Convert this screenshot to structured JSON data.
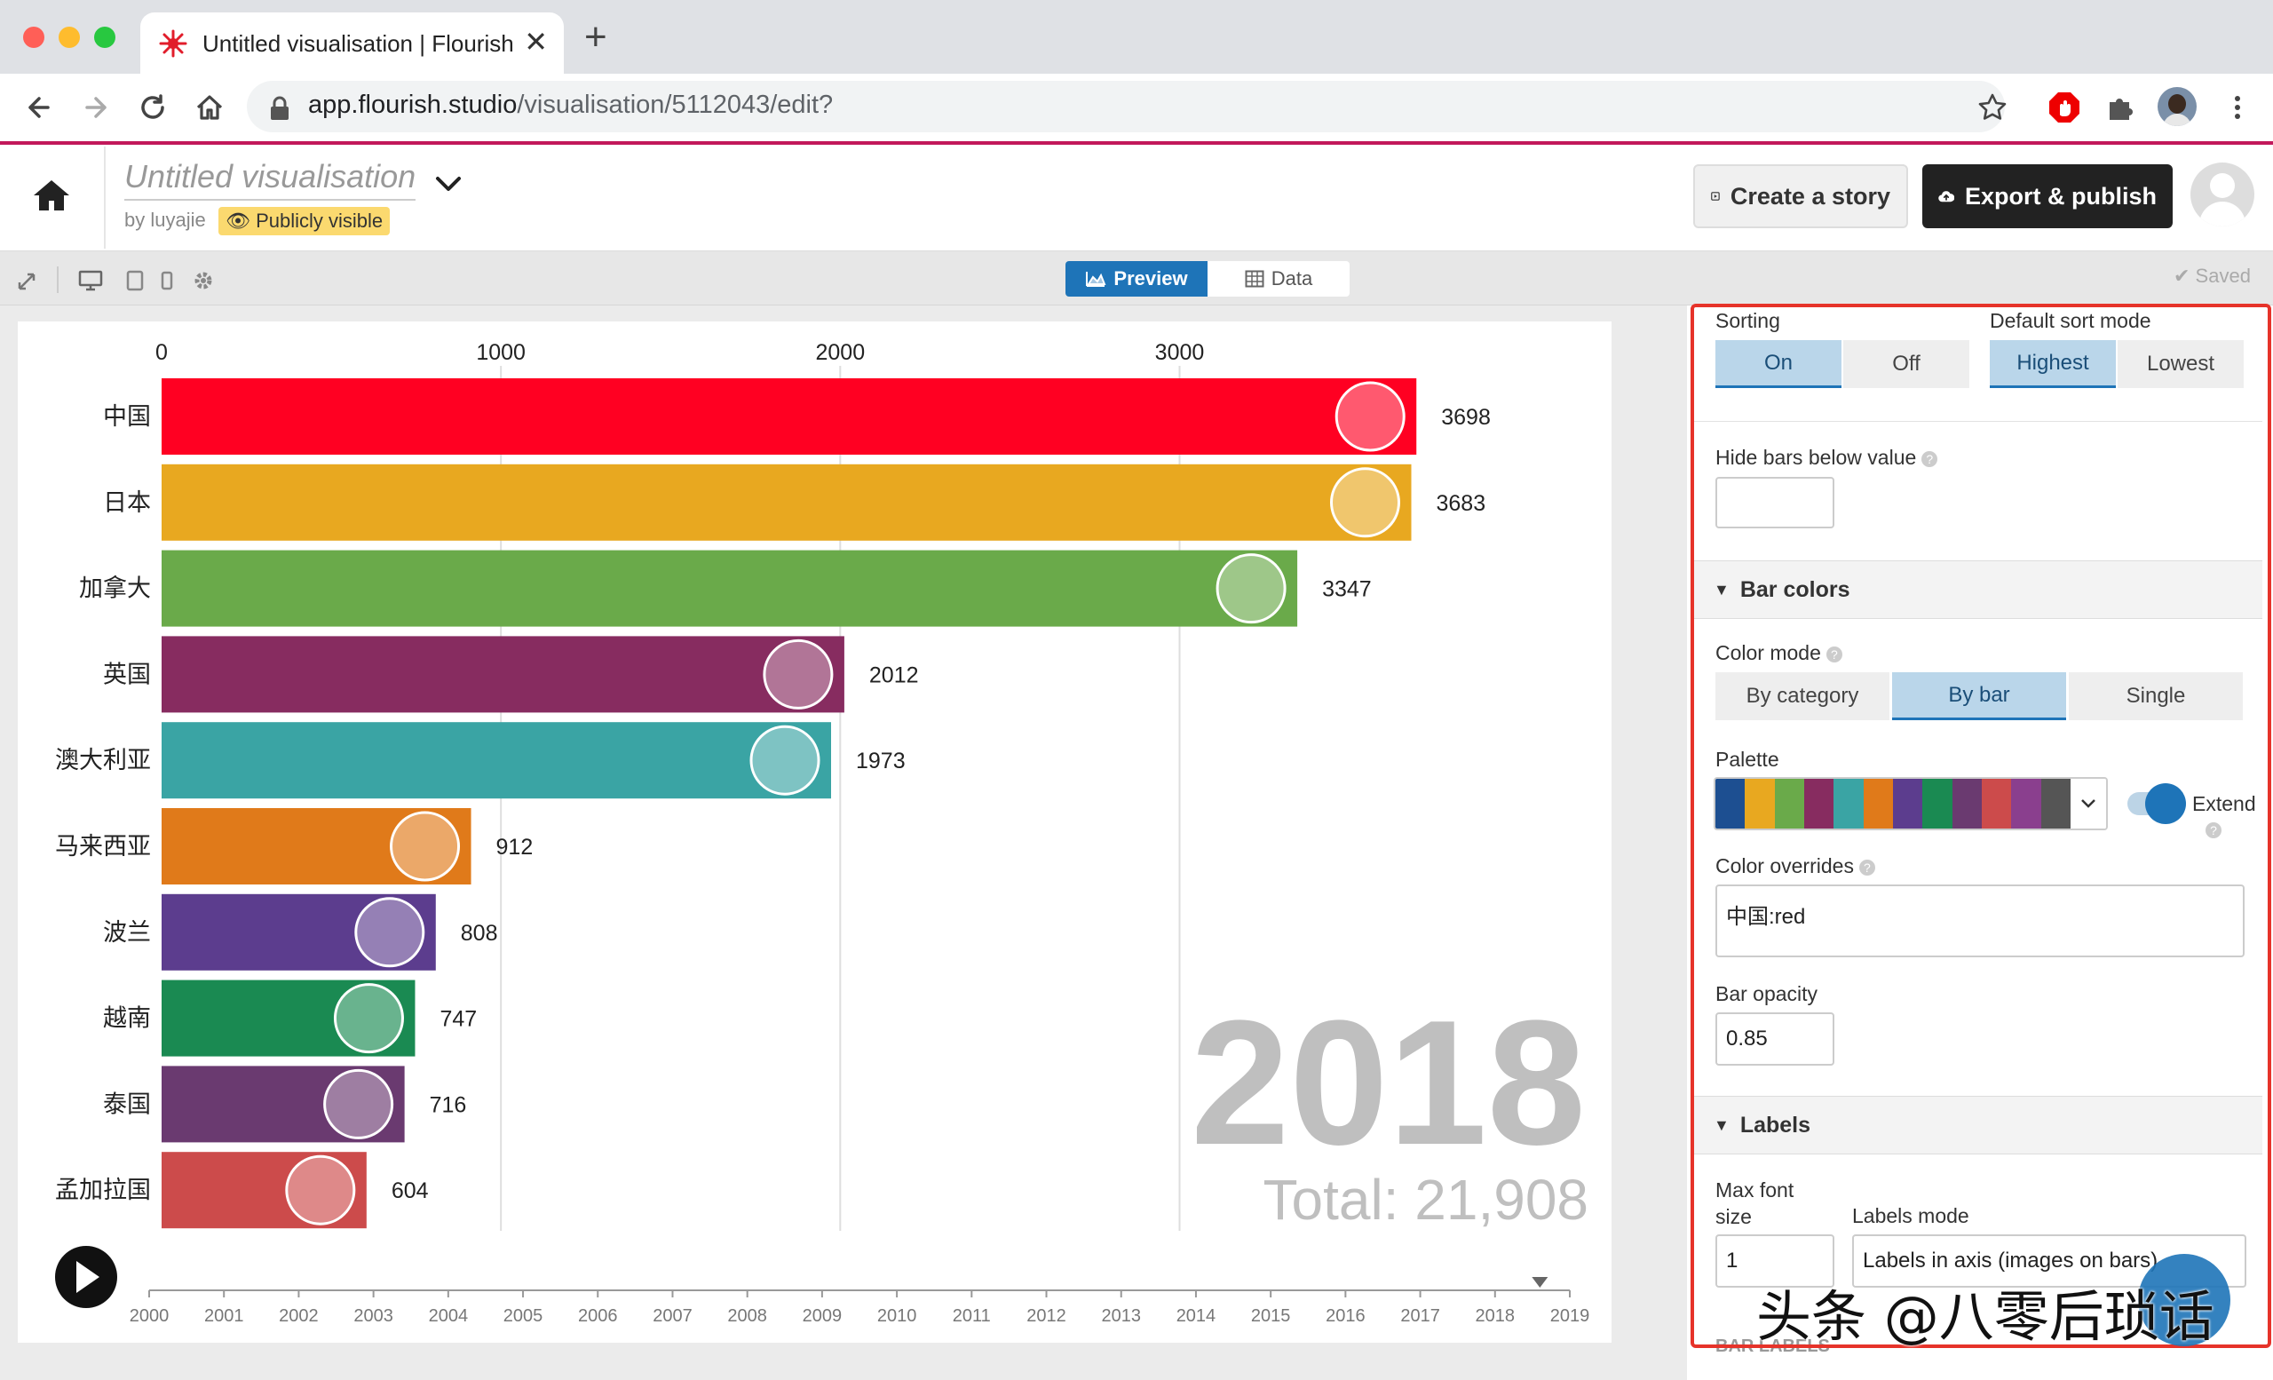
{
  "browser": {
    "tab_title": "Untitled visualisation | Flourish",
    "close_glyph": "✕",
    "new_tab_glyph": "+",
    "url_host": "app.flourish.studio",
    "url_path": "/visualisation/5112043/edit?"
  },
  "header": {
    "title": "Untitled visualisation",
    "byline": "by luyajie",
    "visibility_badge": "Publicly visible",
    "create_story": "Create a story",
    "export_publish": "Export & publish"
  },
  "subbar": {
    "preview": "Preview",
    "data": "Data",
    "saved": "✔ Saved"
  },
  "chart_data": {
    "type": "bar",
    "orientation": "horizontal",
    "categories": [
      "中国",
      "日本",
      "加拿大",
      "英国",
      "澳大利亚",
      "马来西亚",
      "波兰",
      "越南",
      "泰国",
      "孟加拉国"
    ],
    "values": [
      3698,
      3683,
      3347,
      2012,
      1973,
      912,
      808,
      747,
      716,
      604
    ],
    "colors": [
      "#ff0022",
      "#e8a820",
      "#6aaa4a",
      "#872c60",
      "#3aa4a4",
      "#e07a1a",
      "#5c3d8e",
      "#1a8a52",
      "#6a3a70",
      "#cc4b4b"
    ],
    "xlim": [
      0,
      3700
    ],
    "x_ticks": [
      0,
      1000,
      2000,
      3000
    ],
    "year": "2018",
    "total": "Total: 21,908",
    "timeline_years": [
      "2000",
      "2001",
      "2002",
      "2003",
      "2004",
      "2005",
      "2006",
      "2007",
      "2008",
      "2009",
      "2010",
      "2011",
      "2012",
      "2013",
      "2014",
      "2015",
      "2016",
      "2017",
      "2018",
      "2019"
    ],
    "grid": true
  },
  "panel": {
    "sorting_label": "Sorting",
    "sorting_on": "On",
    "sorting_off": "Off",
    "sort_mode_label": "Default sort mode",
    "sort_highest": "Highest",
    "sort_lowest": "Lowest",
    "hide_bars_label": "Hide bars below value",
    "bar_colors_section": "Bar colors",
    "color_mode_label": "Color mode",
    "color_by_category": "By category",
    "color_by_bar": "By bar",
    "color_single": "Single",
    "palette_label": "Palette",
    "palette_colors": [
      "#1d4f91",
      "#e8a820",
      "#6aaa4a",
      "#872c60",
      "#3aa4a4",
      "#e07a1a",
      "#5c3d8e",
      "#1a8a52",
      "#6a3a70",
      "#cc4b4b",
      "#8a3f8e",
      "#555555"
    ],
    "extend_label": "Extend",
    "color_overrides_label": "Color overrides",
    "color_overrides_value": "中国:red",
    "bar_opacity_label": "Bar opacity",
    "bar_opacity_value": "0.85",
    "labels_section": "Labels",
    "max_font_label": "Max font size",
    "max_font_value": "1",
    "labels_mode_label": "Labels mode",
    "labels_mode_value": "Labels in axis (images on bars)",
    "next_section": "BAR LABELS"
  },
  "watermark": "头条 @八零后琐话",
  "icons": [
    "back-icon",
    "forward-icon",
    "reload-icon",
    "home-icon",
    "lock-icon",
    "star-icon",
    "adblock-icon",
    "extensions-icon",
    "profile-icon",
    "menu-icon",
    "play-icon",
    "expand-icon",
    "desktop-icon",
    "tablet-icon",
    "phone-icon",
    "settings-icon"
  ]
}
